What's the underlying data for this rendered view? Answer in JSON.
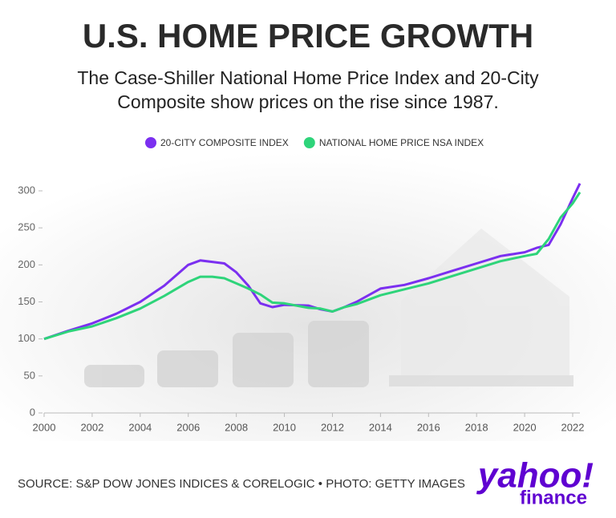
{
  "chart_data": {
    "type": "line",
    "title": "U.S. HOME PRICE GROWTH",
    "subtitle": [
      "The Case-Shiller National Home Price Index and 20-City",
      "Composite show prices on the rise since 1987."
    ],
    "x": [
      2000,
      2001,
      2002,
      2003,
      2004,
      2005,
      2006,
      2006.5,
      2007,
      2007.5,
      2008,
      2008.5,
      2009,
      2009.5,
      2010,
      2011,
      2011.5,
      2012,
      2012.5,
      2013,
      2014,
      2015,
      2016,
      2017,
      2018,
      2019,
      2020,
      2020.5,
      2021,
      2021.5,
      2022,
      2022.3
    ],
    "series": [
      {
        "name": "20-CITY COMPOSITE INDEX",
        "color": "#7b2ff0",
        "values": [
          100,
          111,
          121,
          134,
          150,
          172,
          200,
          206,
          204,
          202,
          190,
          172,
          148,
          143,
          146,
          145,
          140,
          137,
          143,
          150,
          168,
          173,
          182,
          192,
          202,
          212,
          217,
          223,
          227,
          255,
          290,
          310
        ]
      },
      {
        "name": "NATIONAL HOME PRICE NSA INDEX",
        "color": "#2ed47a",
        "values": [
          100,
          110,
          117,
          128,
          141,
          158,
          177,
          184,
          184,
          182,
          175,
          168,
          160,
          149,
          148,
          142,
          141,
          137,
          143,
          147,
          159,
          167,
          175,
          185,
          195,
          205,
          212,
          215,
          235,
          264,
          283,
          298
        ]
      }
    ],
    "xlim": [
      2000,
      2022.3
    ],
    "xticks": [
      2000,
      2002,
      2004,
      2006,
      2008,
      2010,
      2012,
      2014,
      2016,
      2018,
      2020,
      2022
    ],
    "ylim": [
      0,
      300
    ],
    "yticks": [
      0,
      50,
      100,
      150,
      200,
      250,
      300
    ]
  },
  "source": "SOURCE: S&P DOW JONES INDICES & CORELOGIC • PHOTO: GETTY IMAGES",
  "logo": {
    "line1": "yahoo!",
    "line2": "finance"
  }
}
